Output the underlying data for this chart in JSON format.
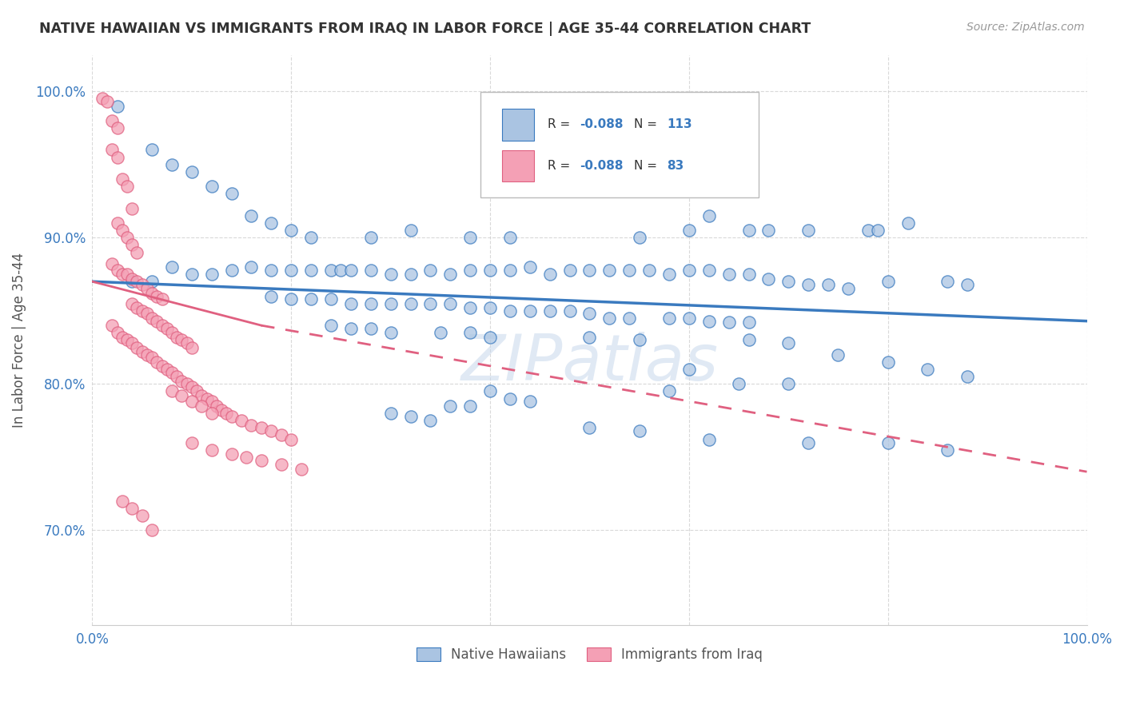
{
  "title": "NATIVE HAWAIIAN VS IMMIGRANTS FROM IRAQ IN LABOR FORCE | AGE 35-44 CORRELATION CHART",
  "source": "Source: ZipAtlas.com",
  "ylabel": "In Labor Force | Age 35-44",
  "xlim": [
    0.0,
    1.0
  ],
  "ylim": [
    0.635,
    1.025
  ],
  "x_ticks": [
    0.0,
    0.2,
    0.4,
    0.6,
    0.8,
    1.0
  ],
  "x_tick_labels": [
    "0.0%",
    "",
    "",
    "",
    "",
    "100.0%"
  ],
  "y_ticks": [
    0.7,
    0.8,
    0.9,
    1.0
  ],
  "y_tick_labels": [
    "70.0%",
    "80.0%",
    "90.0%",
    "100.0%"
  ],
  "color_blue": "#aac4e2",
  "color_pink": "#f4a0b5",
  "line_blue": "#3a7abf",
  "line_pink": "#e06080",
  "watermark": "ZIPatlas",
  "bg_color": "#ffffff",
  "grid_color": "#d0d0d0",
  "blue_scatter": [
    [
      0.025,
      0.99
    ],
    [
      0.06,
      0.96
    ],
    [
      0.08,
      0.95
    ],
    [
      0.1,
      0.945
    ],
    [
      0.12,
      0.935
    ],
    [
      0.14,
      0.93
    ],
    [
      0.16,
      0.915
    ],
    [
      0.18,
      0.91
    ],
    [
      0.2,
      0.905
    ],
    [
      0.22,
      0.9
    ],
    [
      0.28,
      0.9
    ],
    [
      0.32,
      0.905
    ],
    [
      0.38,
      0.9
    ],
    [
      0.42,
      0.9
    ],
    [
      0.55,
      0.9
    ],
    [
      0.6,
      0.905
    ],
    [
      0.62,
      0.915
    ],
    [
      0.66,
      0.905
    ],
    [
      0.68,
      0.905
    ],
    [
      0.72,
      0.905
    ],
    [
      0.78,
      0.905
    ],
    [
      0.79,
      0.905
    ],
    [
      0.82,
      0.91
    ],
    [
      0.04,
      0.87
    ],
    [
      0.06,
      0.87
    ],
    [
      0.08,
      0.88
    ],
    [
      0.1,
      0.875
    ],
    [
      0.12,
      0.875
    ],
    [
      0.14,
      0.878
    ],
    [
      0.16,
      0.88
    ],
    [
      0.18,
      0.878
    ],
    [
      0.2,
      0.878
    ],
    [
      0.22,
      0.878
    ],
    [
      0.24,
      0.878
    ],
    [
      0.25,
      0.878
    ],
    [
      0.26,
      0.878
    ],
    [
      0.28,
      0.878
    ],
    [
      0.3,
      0.875
    ],
    [
      0.32,
      0.875
    ],
    [
      0.34,
      0.878
    ],
    [
      0.36,
      0.875
    ],
    [
      0.38,
      0.878
    ],
    [
      0.4,
      0.878
    ],
    [
      0.42,
      0.878
    ],
    [
      0.44,
      0.88
    ],
    [
      0.46,
      0.875
    ],
    [
      0.48,
      0.878
    ],
    [
      0.5,
      0.878
    ],
    [
      0.52,
      0.878
    ],
    [
      0.54,
      0.878
    ],
    [
      0.56,
      0.878
    ],
    [
      0.58,
      0.875
    ],
    [
      0.6,
      0.878
    ],
    [
      0.62,
      0.878
    ],
    [
      0.64,
      0.875
    ],
    [
      0.66,
      0.875
    ],
    [
      0.68,
      0.872
    ],
    [
      0.7,
      0.87
    ],
    [
      0.72,
      0.868
    ],
    [
      0.74,
      0.868
    ],
    [
      0.76,
      0.865
    ],
    [
      0.8,
      0.87
    ],
    [
      0.86,
      0.87
    ],
    [
      0.88,
      0.868
    ],
    [
      0.18,
      0.86
    ],
    [
      0.2,
      0.858
    ],
    [
      0.22,
      0.858
    ],
    [
      0.24,
      0.858
    ],
    [
      0.26,
      0.855
    ],
    [
      0.28,
      0.855
    ],
    [
      0.3,
      0.855
    ],
    [
      0.32,
      0.855
    ],
    [
      0.34,
      0.855
    ],
    [
      0.36,
      0.855
    ],
    [
      0.38,
      0.852
    ],
    [
      0.4,
      0.852
    ],
    [
      0.42,
      0.85
    ],
    [
      0.44,
      0.85
    ],
    [
      0.46,
      0.85
    ],
    [
      0.48,
      0.85
    ],
    [
      0.5,
      0.848
    ],
    [
      0.52,
      0.845
    ],
    [
      0.54,
      0.845
    ],
    [
      0.58,
      0.845
    ],
    [
      0.6,
      0.845
    ],
    [
      0.62,
      0.843
    ],
    [
      0.64,
      0.842
    ],
    [
      0.66,
      0.842
    ],
    [
      0.24,
      0.84
    ],
    [
      0.26,
      0.838
    ],
    [
      0.28,
      0.838
    ],
    [
      0.3,
      0.835
    ],
    [
      0.35,
      0.835
    ],
    [
      0.38,
      0.835
    ],
    [
      0.4,
      0.832
    ],
    [
      0.5,
      0.832
    ],
    [
      0.55,
      0.83
    ],
    [
      0.66,
      0.83
    ],
    [
      0.7,
      0.828
    ],
    [
      0.75,
      0.82
    ],
    [
      0.8,
      0.815
    ],
    [
      0.84,
      0.81
    ],
    [
      0.88,
      0.805
    ],
    [
      0.6,
      0.81
    ],
    [
      0.7,
      0.8
    ],
    [
      0.58,
      0.795
    ],
    [
      0.65,
      0.8
    ],
    [
      0.4,
      0.795
    ],
    [
      0.42,
      0.79
    ],
    [
      0.44,
      0.788
    ],
    [
      0.36,
      0.785
    ],
    [
      0.38,
      0.785
    ],
    [
      0.3,
      0.78
    ],
    [
      0.32,
      0.778
    ],
    [
      0.34,
      0.775
    ],
    [
      0.5,
      0.77
    ],
    [
      0.55,
      0.768
    ],
    [
      0.62,
      0.762
    ],
    [
      0.72,
      0.76
    ],
    [
      0.8,
      0.76
    ],
    [
      0.86,
      0.755
    ]
  ],
  "pink_scatter": [
    [
      0.01,
      0.995
    ],
    [
      0.015,
      0.993
    ],
    [
      0.02,
      0.98
    ],
    [
      0.025,
      0.975
    ],
    [
      0.02,
      0.96
    ],
    [
      0.025,
      0.955
    ],
    [
      0.03,
      0.94
    ],
    [
      0.035,
      0.935
    ],
    [
      0.04,
      0.92
    ],
    [
      0.025,
      0.91
    ],
    [
      0.03,
      0.905
    ],
    [
      0.035,
      0.9
    ],
    [
      0.04,
      0.895
    ],
    [
      0.045,
      0.89
    ],
    [
      0.02,
      0.882
    ],
    [
      0.025,
      0.878
    ],
    [
      0.03,
      0.875
    ],
    [
      0.035,
      0.875
    ],
    [
      0.04,
      0.872
    ],
    [
      0.045,
      0.87
    ],
    [
      0.05,
      0.868
    ],
    [
      0.055,
      0.865
    ],
    [
      0.06,
      0.862
    ],
    [
      0.065,
      0.86
    ],
    [
      0.07,
      0.858
    ],
    [
      0.04,
      0.855
    ],
    [
      0.045,
      0.852
    ],
    [
      0.05,
      0.85
    ],
    [
      0.055,
      0.848
    ],
    [
      0.06,
      0.845
    ],
    [
      0.065,
      0.843
    ],
    [
      0.07,
      0.84
    ],
    [
      0.075,
      0.838
    ],
    [
      0.08,
      0.835
    ],
    [
      0.085,
      0.832
    ],
    [
      0.09,
      0.83
    ],
    [
      0.095,
      0.828
    ],
    [
      0.1,
      0.825
    ],
    [
      0.02,
      0.84
    ],
    [
      0.025,
      0.835
    ],
    [
      0.03,
      0.832
    ],
    [
      0.035,
      0.83
    ],
    [
      0.04,
      0.828
    ],
    [
      0.045,
      0.825
    ],
    [
      0.05,
      0.822
    ],
    [
      0.055,
      0.82
    ],
    [
      0.06,
      0.818
    ],
    [
      0.065,
      0.815
    ],
    [
      0.07,
      0.812
    ],
    [
      0.075,
      0.81
    ],
    [
      0.08,
      0.808
    ],
    [
      0.085,
      0.805
    ],
    [
      0.09,
      0.802
    ],
    [
      0.095,
      0.8
    ],
    [
      0.1,
      0.798
    ],
    [
      0.105,
      0.795
    ],
    [
      0.11,
      0.792
    ],
    [
      0.115,
      0.79
    ],
    [
      0.12,
      0.788
    ],
    [
      0.125,
      0.785
    ],
    [
      0.13,
      0.782
    ],
    [
      0.135,
      0.78
    ],
    [
      0.08,
      0.795
    ],
    [
      0.09,
      0.792
    ],
    [
      0.1,
      0.788
    ],
    [
      0.11,
      0.785
    ],
    [
      0.12,
      0.78
    ],
    [
      0.14,
      0.778
    ],
    [
      0.15,
      0.775
    ],
    [
      0.16,
      0.772
    ],
    [
      0.17,
      0.77
    ],
    [
      0.18,
      0.768
    ],
    [
      0.19,
      0.765
    ],
    [
      0.2,
      0.762
    ],
    [
      0.1,
      0.76
    ],
    [
      0.12,
      0.755
    ],
    [
      0.14,
      0.752
    ],
    [
      0.155,
      0.75
    ],
    [
      0.17,
      0.748
    ],
    [
      0.19,
      0.745
    ],
    [
      0.21,
      0.742
    ],
    [
      0.03,
      0.72
    ],
    [
      0.04,
      0.715
    ],
    [
      0.05,
      0.71
    ],
    [
      0.06,
      0.7
    ]
  ],
  "blue_trend": [
    0.0,
    1.0,
    0.87,
    0.843
  ],
  "pink_trend_solid": [
    0.0,
    0.17,
    0.87,
    0.84
  ],
  "pink_trend_dash": [
    0.17,
    1.0,
    0.84,
    0.74
  ]
}
